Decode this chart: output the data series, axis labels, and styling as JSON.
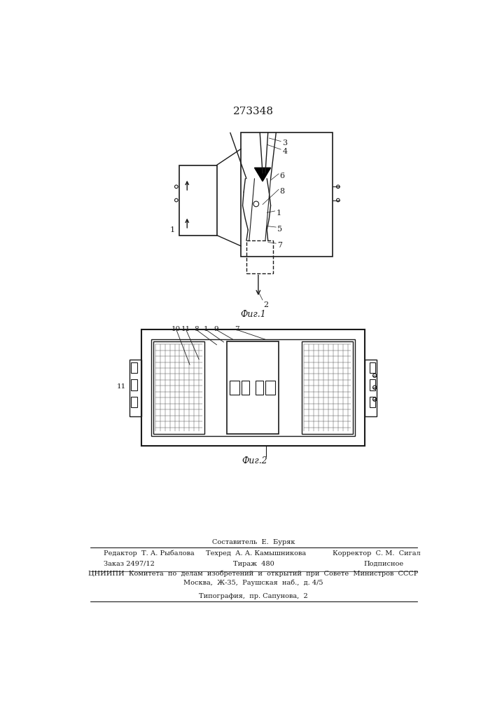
{
  "patent_number": "273348",
  "fig1_caption": "Фиг.1",
  "fig2_caption": "Фиг.2",
  "bg_color": "#ffffff",
  "line_color": "#1a1a1a"
}
